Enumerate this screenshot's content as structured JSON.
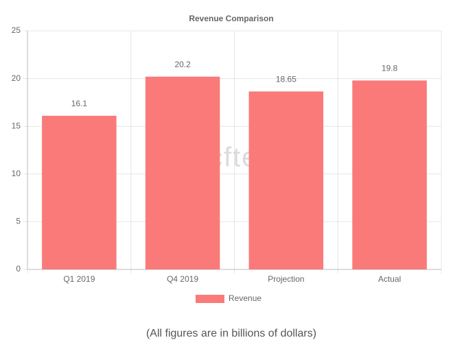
{
  "chart_data": {
    "type": "bar",
    "title": "Revenue Comparison",
    "categories": [
      "Q1 2019",
      "Q4 2019",
      "Projection",
      "Actual"
    ],
    "series": [
      {
        "name": "Revenue",
        "color": "#fa7a7a",
        "values": [
          16.1,
          20.2,
          18.65,
          19.8
        ]
      }
    ],
    "ylim": [
      0,
      25
    ],
    "yticks": [
      0,
      5,
      10,
      15,
      20,
      25
    ],
    "grid": true,
    "legend": "bottom",
    "watermark": "wccftech",
    "caption": "(All figures are in billions of dollars)"
  }
}
